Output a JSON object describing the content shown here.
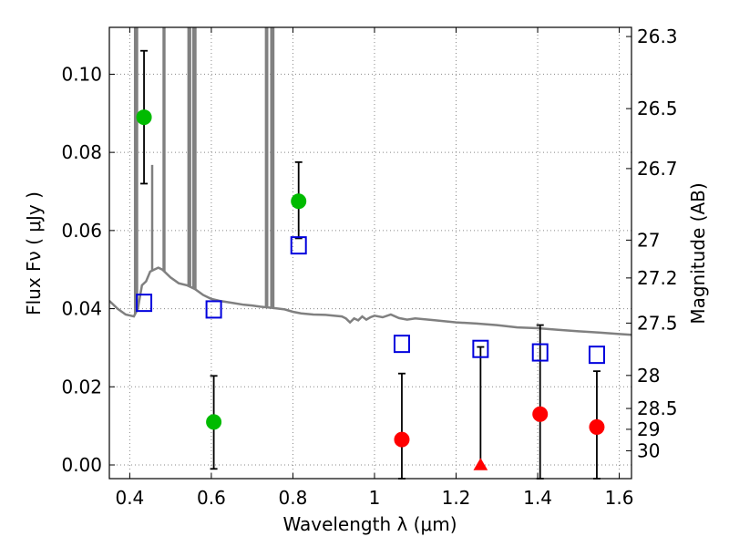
{
  "chart_data": {
    "type": "scatter",
    "xlabel": "Wavelength  λ (μm)",
    "ylabel": "Flux  Fν  ( μJy )",
    "y2label": "Magnitude (AB)",
    "xlim": [
      0.35,
      1.63
    ],
    "ylim": [
      -0.0035,
      0.112
    ],
    "grid": true,
    "x_ticks": [
      0.4,
      0.6,
      0.8,
      1.0,
      1.2,
      1.4,
      1.6
    ],
    "x_tick_labels": [
      "0.4",
      "0.6",
      "0.8",
      "1",
      "1.2",
      "1.4",
      "1.6"
    ],
    "y_ticks": [
      0.0,
      0.02,
      0.04,
      0.06,
      0.08,
      0.1
    ],
    "y_tick_labels": [
      "0.00",
      "0.02",
      "0.04",
      "0.06",
      "0.08",
      "0.10"
    ],
    "mag_ticks": [
      {
        "mag": 26.3,
        "label": "26.3"
      },
      {
        "mag": 26.5,
        "label": "26.5"
      },
      {
        "mag": 26.7,
        "label": "26.7"
      },
      {
        "mag": 27.0,
        "label": "27"
      },
      {
        "mag": 27.2,
        "label": "27.2"
      },
      {
        "mag": 27.5,
        "label": "27.5"
      },
      {
        "mag": 28.0,
        "label": "28"
      },
      {
        "mag": 28.5,
        "label": "28.5"
      },
      {
        "mag": 29.0,
        "label": "29"
      },
      {
        "mag": 30.0,
        "label": "30"
      }
    ],
    "colors": {
      "detections": "#00bb00",
      "non_detections": "#ff0000",
      "model_photometry": "#0000dd",
      "sed": "#808080",
      "grid": "#888888"
    },
    "series": [
      {
        "marker": "circle",
        "color": "#00bb00",
        "points": [
          {
            "x": 0.435,
            "y": 0.089,
            "ylo": 0.072,
            "yhi": 0.106
          },
          {
            "x": 0.606,
            "y": 0.011,
            "ylo": -0.001,
            "yhi": 0.0228
          },
          {
            "x": 0.814,
            "y": 0.0675,
            "ylo": 0.058,
            "yhi": 0.0775
          }
        ]
      },
      {
        "marker": "circle",
        "color": "#ff0000",
        "points": [
          {
            "x": 1.067,
            "y": 0.0065,
            "ylo": -0.0035,
            "yhi": 0.0234
          },
          {
            "x": 1.406,
            "y": 0.013,
            "ylo": -0.0035,
            "yhi": 0.0358
          },
          {
            "x": 1.545,
            "y": 0.0097,
            "ylo": -0.0035,
            "yhi": 0.024
          }
        ]
      },
      {
        "marker": "triangle",
        "color": "#ff0000",
        "points": [
          {
            "x": 1.26,
            "y": -0.0003,
            "ylo": -0.0003,
            "yhi": 0.0302
          }
        ]
      },
      {
        "marker": "open-square",
        "color": "#0000dd",
        "points": [
          {
            "x": 0.435,
            "y": 0.0415
          },
          {
            "x": 0.606,
            "y": 0.0398
          },
          {
            "x": 0.814,
            "y": 0.0562
          },
          {
            "x": 1.067,
            "y": 0.031
          },
          {
            "x": 1.26,
            "y": 0.0297
          },
          {
            "x": 1.406,
            "y": 0.0288
          },
          {
            "x": 1.545,
            "y": 0.0282
          }
        ]
      }
    ],
    "sed_line": {
      "continuum": [
        [
          0.35,
          0.042
        ],
        [
          0.37,
          0.04
        ],
        [
          0.39,
          0.0385
        ],
        [
          0.41,
          0.038
        ],
        [
          0.42,
          0.04
        ],
        [
          0.43,
          0.046
        ],
        [
          0.44,
          0.047
        ],
        [
          0.45,
          0.0495
        ],
        [
          0.46,
          0.05
        ],
        [
          0.47,
          0.0505
        ],
        [
          0.48,
          0.05
        ],
        [
          0.5,
          0.048
        ],
        [
          0.52,
          0.0465
        ],
        [
          0.54,
          0.046
        ],
        [
          0.56,
          0.045
        ],
        [
          0.58,
          0.0435
        ],
        [
          0.6,
          0.0425
        ],
        [
          0.62,
          0.042
        ],
        [
          0.65,
          0.0415
        ],
        [
          0.68,
          0.041
        ],
        [
          0.7,
          0.0408
        ],
        [
          0.72,
          0.0405
        ],
        [
          0.75,
          0.0402
        ],
        [
          0.78,
          0.0398
        ],
        [
          0.8,
          0.0392
        ],
        [
          0.82,
          0.0388
        ],
        [
          0.85,
          0.0385
        ],
        [
          0.88,
          0.0384
        ],
        [
          0.9,
          0.0382
        ],
        [
          0.92,
          0.038
        ],
        [
          0.93,
          0.0375
        ],
        [
          0.94,
          0.0365
        ],
        [
          0.95,
          0.0375
        ],
        [
          0.96,
          0.037
        ],
        [
          0.97,
          0.038
        ],
        [
          0.98,
          0.0372
        ],
        [
          0.99,
          0.0378
        ],
        [
          1.0,
          0.0382
        ],
        [
          1.02,
          0.0378
        ],
        [
          1.04,
          0.0385
        ],
        [
          1.06,
          0.0376
        ],
        [
          1.08,
          0.0372
        ],
        [
          1.1,
          0.0375
        ],
        [
          1.15,
          0.037
        ],
        [
          1.2,
          0.0365
        ],
        [
          1.25,
          0.0362
        ],
        [
          1.3,
          0.0358
        ],
        [
          1.35,
          0.0352
        ],
        [
          1.4,
          0.035
        ],
        [
          1.45,
          0.0346
        ],
        [
          1.5,
          0.0342
        ],
        [
          1.55,
          0.0339
        ],
        [
          1.6,
          0.0335
        ],
        [
          1.63,
          0.0333
        ]
      ],
      "emission_lines": [
        {
          "x": 0.413,
          "peak": 0.112
        },
        {
          "x": 0.418,
          "peak": 0.112
        },
        {
          "x": 0.455,
          "peak": 0.0768
        },
        {
          "x": 0.483,
          "peak": 0.112
        },
        {
          "x": 0.485,
          "peak": 0.112
        },
        {
          "x": 0.544,
          "peak": 0.112
        },
        {
          "x": 0.548,
          "peak": 0.112
        },
        {
          "x": 0.556,
          "peak": 0.112
        },
        {
          "x": 0.561,
          "peak": 0.112
        },
        {
          "x": 0.734,
          "peak": 0.112
        },
        {
          "x": 0.737,
          "peak": 0.112
        },
        {
          "x": 0.747,
          "peak": 0.112
        },
        {
          "x": 0.752,
          "peak": 0.112
        }
      ]
    }
  }
}
